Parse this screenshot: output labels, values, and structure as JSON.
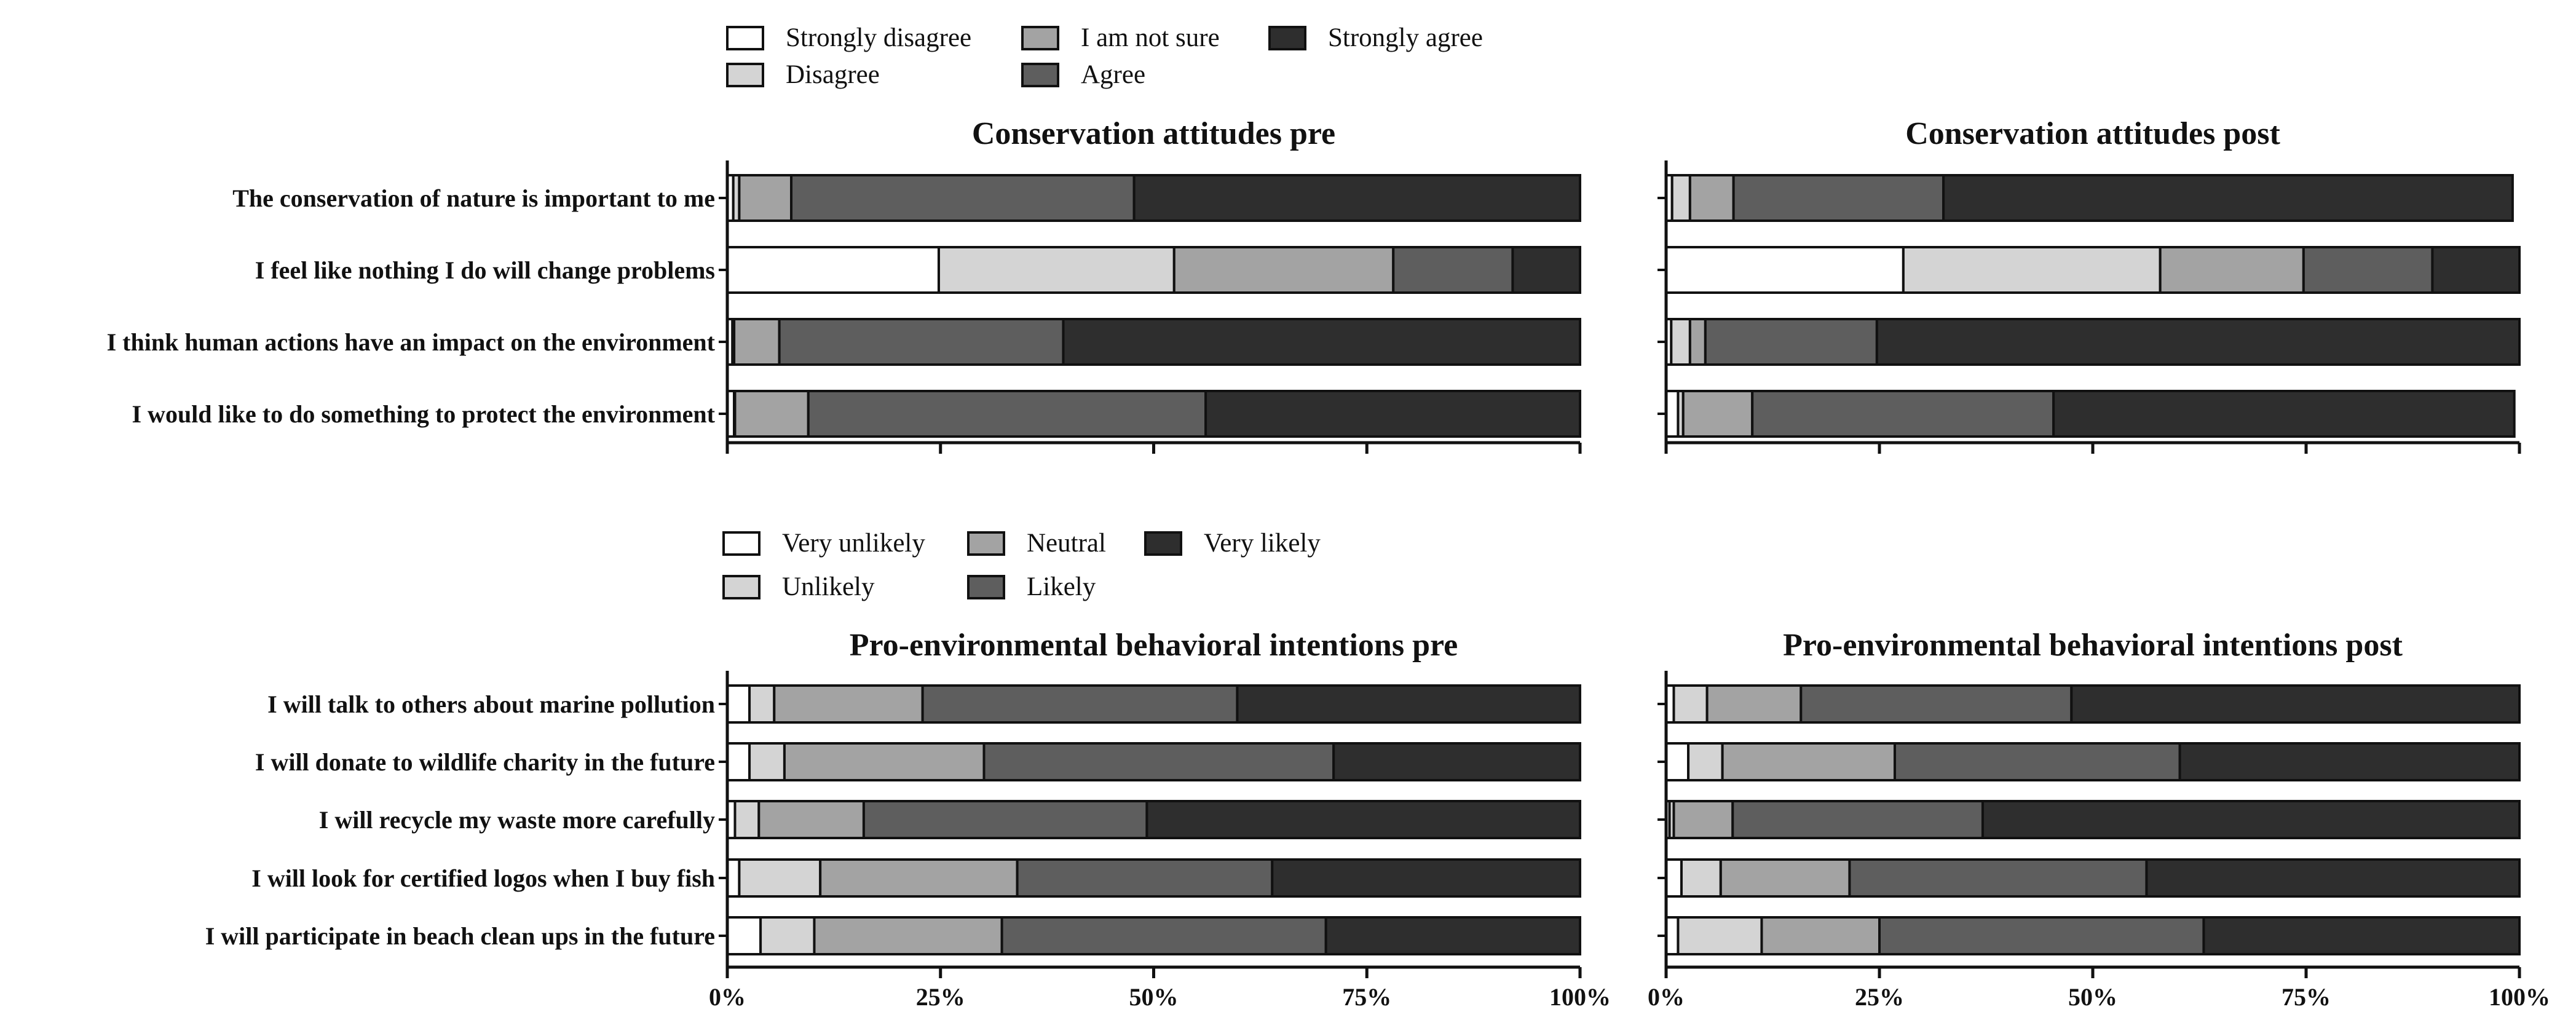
{
  "colors": [
    "#ffffff",
    "#d4d4d4",
    "#a3a3a3",
    "#5e5e5e",
    "#2e2e2e"
  ],
  "axis_ticks": [
    "0%",
    "25%",
    "50%",
    "75%",
    "100%"
  ],
  "legends": {
    "attitudes": [
      "Strongly disagree",
      "Disagree",
      "I am not sure",
      "Agree",
      "Strongly agree"
    ],
    "intentions": [
      "Very unlikely",
      "Unlikely",
      "Neutral",
      "Likely",
      "Very likely"
    ]
  },
  "chart_data": [
    {
      "type": "bar",
      "orientation": "horizontal",
      "stacked": true,
      "title": "Conservation attitudes pre",
      "categories": [
        "The conservation of nature is important to me",
        "I feel like nothing I do will change problems",
        "I think human actions have an impact on the environment",
        "I would like to do something to protect the environment"
      ],
      "series": [
        {
          "name": "Strongly disagree",
          "values": [
            0.7,
            24.8,
            0.6,
            0.8
          ]
        },
        {
          "name": "Disagree",
          "values": [
            0.7,
            27.6,
            0.2,
            0.1
          ]
        },
        {
          "name": "I am not sure",
          "values": [
            6.1,
            25.7,
            5.3,
            8.6
          ]
        },
        {
          "name": "Agree",
          "values": [
            40.2,
            14.0,
            33.3,
            46.6
          ]
        },
        {
          "name": "Strongly agree",
          "values": [
            52.3,
            7.9,
            60.6,
            43.9
          ]
        }
      ],
      "xlim": [
        0,
        100
      ],
      "xlabel": "",
      "ylabel": ""
    },
    {
      "type": "bar",
      "orientation": "horizontal",
      "stacked": true,
      "title": "Conservation attitudes post",
      "categories": [
        "The conservation of nature is important to me",
        "I feel like nothing I do will change problems",
        "I think human actions have an impact on the environment",
        "I would like to do something to protect the environment"
      ],
      "series": [
        {
          "name": "Strongly disagree",
          "values": [
            0.7,
            27.8,
            0.6,
            1.4
          ]
        },
        {
          "name": "Disagree",
          "values": [
            2.1,
            30.1,
            2.2,
            0.6
          ]
        },
        {
          "name": "I am not sure",
          "values": [
            5.1,
            16.8,
            1.8,
            8.1
          ]
        },
        {
          "name": "Agree",
          "values": [
            24.6,
            15.1,
            20.1,
            35.3
          ]
        },
        {
          "name": "Strongly agree",
          "values": [
            66.7,
            10.2,
            75.3,
            54.0
          ]
        }
      ],
      "xlim": [
        0,
        100
      ],
      "xlabel": "",
      "ylabel": ""
    },
    {
      "type": "bar",
      "orientation": "horizontal",
      "stacked": true,
      "title": "Pro-environmental behavioral intentions pre",
      "categories": [
        "I will talk to others about marine pollution",
        "I will donate to wildlife charity in the future",
        "I will recycle my waste more carefully",
        "I will look for certified logos when I buy fish",
        "I will participate in beach clean ups in the future"
      ],
      "series": [
        {
          "name": "Very unlikely",
          "values": [
            2.6,
            2.6,
            0.9,
            1.4,
            3.9
          ]
        },
        {
          "name": "Unlikely",
          "values": [
            2.9,
            4.1,
            2.8,
            9.5,
            6.3
          ]
        },
        {
          "name": "Neutral",
          "values": [
            17.4,
            23.4,
            12.3,
            23.1,
            22.0
          ]
        },
        {
          "name": "Likely",
          "values": [
            36.9,
            41.0,
            33.2,
            29.9,
            38.0
          ]
        },
        {
          "name": "Very likely",
          "values": [
            40.2,
            28.9,
            50.8,
            36.1,
            29.8
          ]
        }
      ],
      "xlim": [
        0,
        100
      ],
      "xlabel": "",
      "ylabel": ""
    },
    {
      "type": "bar",
      "orientation": "horizontal",
      "stacked": true,
      "title": "Pro-environmental behavioral intentions post",
      "categories": [
        "I will talk to others about marine pollution",
        "I will donate to wildlife charity in the future",
        "I will recycle my waste more carefully",
        "I will look for certified logos when I buy fish",
        "I will participate in beach clean ups in the future"
      ],
      "series": [
        {
          "name": "Very unlikely",
          "values": [
            0.9,
            2.6,
            0.4,
            1.8,
            1.4
          ]
        },
        {
          "name": "Unlikely",
          "values": [
            3.9,
            4.0,
            0.5,
            4.6,
            9.8
          ]
        },
        {
          "name": "Neutral",
          "values": [
            11.0,
            20.2,
            6.9,
            15.1,
            13.8
          ]
        },
        {
          "name": "Likely",
          "values": [
            31.7,
            33.4,
            29.3,
            34.8,
            38.0
          ]
        },
        {
          "name": "Very likely",
          "values": [
            52.5,
            39.8,
            62.9,
            43.7,
            37.0
          ]
        }
      ],
      "xlim": [
        0,
        100
      ],
      "xlabel": "",
      "ylabel": ""
    }
  ]
}
